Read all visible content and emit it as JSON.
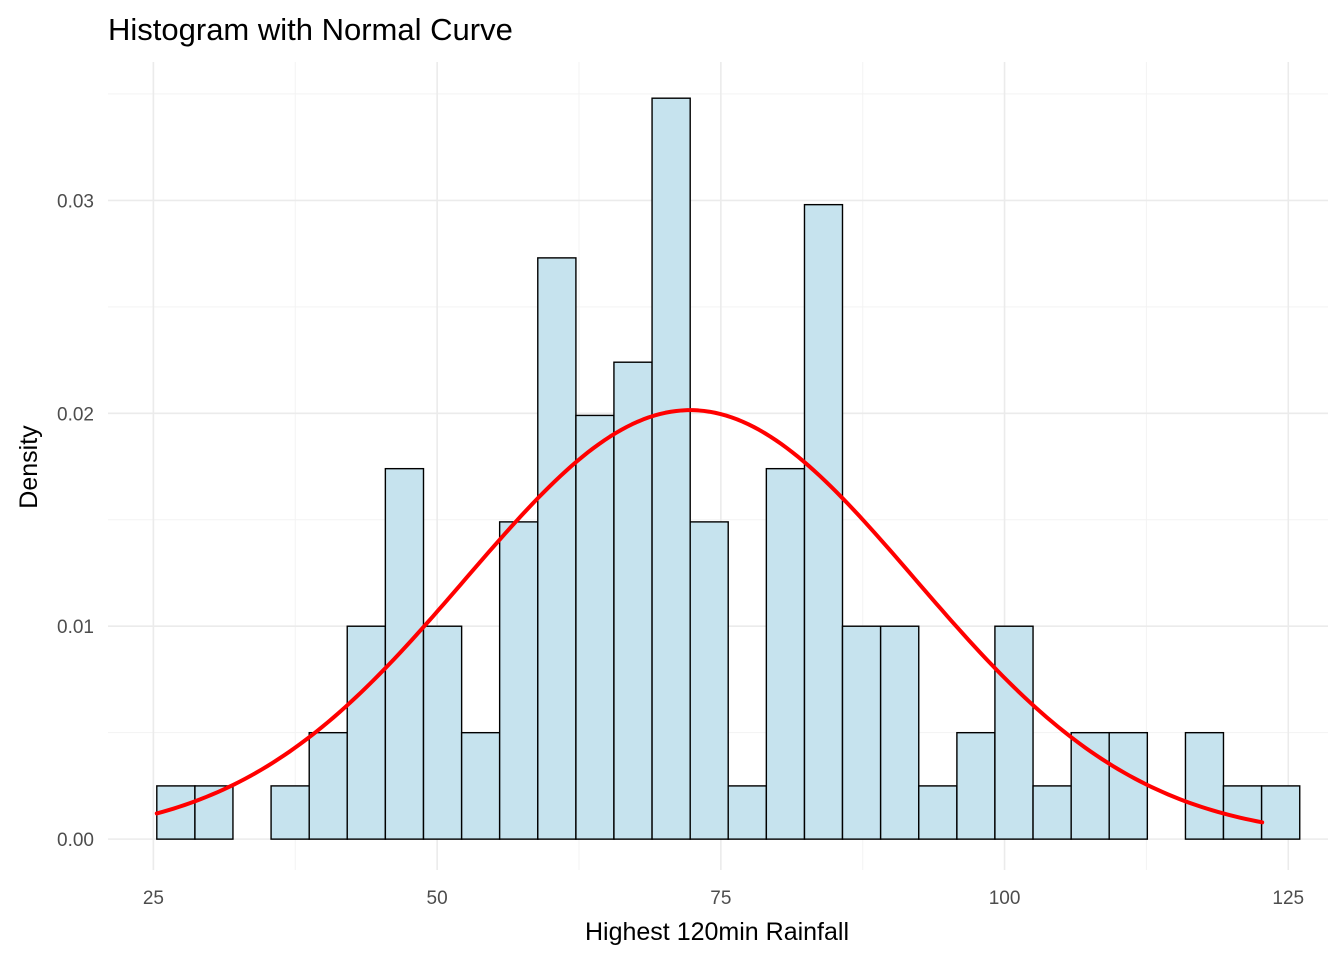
{
  "chart_data": {
    "type": "bar",
    "subtype": "histogram",
    "title": "Histogram with Normal Curve",
    "xlabel": "Highest 120min Rainfall",
    "ylabel": "Density",
    "xlim": [
      21,
      128.5
    ],
    "ylim": [
      -0.00145,
      0.0365
    ],
    "x_ticks": [
      25,
      50,
      75,
      100,
      125
    ],
    "x_tick_labels": [
      "25",
      "50",
      "75",
      "100",
      "125"
    ],
    "y_ticks": [
      0.0,
      0.01,
      0.02,
      0.03
    ],
    "y_tick_labels": [
      "0.00",
      "0.01",
      "0.02",
      "0.03"
    ],
    "grid": true,
    "bin_width": 3.357,
    "bins": [
      {
        "x0": 25.3,
        "x1": 28.66,
        "density": 0.0025
      },
      {
        "x0": 28.66,
        "x1": 32.01,
        "density": 0.0025
      },
      {
        "x0": 32.01,
        "x1": 35.37,
        "density": 0.0
      },
      {
        "x0": 35.37,
        "x1": 38.73,
        "density": 0.0025
      },
      {
        "x0": 38.73,
        "x1": 42.08,
        "density": 0.005
      },
      {
        "x0": 42.08,
        "x1": 45.44,
        "density": 0.01
      },
      {
        "x0": 45.44,
        "x1": 48.8,
        "density": 0.0174
      },
      {
        "x0": 48.8,
        "x1": 52.16,
        "density": 0.01
      },
      {
        "x0": 52.16,
        "x1": 55.51,
        "density": 0.005
      },
      {
        "x0": 55.51,
        "x1": 58.87,
        "density": 0.0149
      },
      {
        "x0": 58.87,
        "x1": 62.23,
        "density": 0.0273
      },
      {
        "x0": 62.23,
        "x1": 65.58,
        "density": 0.0199
      },
      {
        "x0": 65.58,
        "x1": 68.94,
        "density": 0.0224
      },
      {
        "x0": 68.94,
        "x1": 72.3,
        "density": 0.0348
      },
      {
        "x0": 72.3,
        "x1": 75.65,
        "density": 0.0149
      },
      {
        "x0": 75.65,
        "x1": 79.01,
        "density": 0.0025
      },
      {
        "x0": 79.01,
        "x1": 82.37,
        "density": 0.0174
      },
      {
        "x0": 82.37,
        "x1": 85.72,
        "density": 0.0298
      },
      {
        "x0": 85.72,
        "x1": 89.08,
        "density": 0.01
      },
      {
        "x0": 89.08,
        "x1": 92.44,
        "density": 0.01
      },
      {
        "x0": 92.44,
        "x1": 95.8,
        "density": 0.0025
      },
      {
        "x0": 95.8,
        "x1": 99.15,
        "density": 0.005
      },
      {
        "x0": 99.15,
        "x1": 102.51,
        "density": 0.01
      },
      {
        "x0": 102.51,
        "x1": 105.87,
        "density": 0.0025
      },
      {
        "x0": 105.87,
        "x1": 109.22,
        "density": 0.005
      },
      {
        "x0": 109.22,
        "x1": 112.58,
        "density": 0.005
      },
      {
        "x0": 112.58,
        "x1": 115.94,
        "density": 0.0
      },
      {
        "x0": 115.94,
        "x1": 119.29,
        "density": 0.005
      },
      {
        "x0": 119.29,
        "x1": 122.65,
        "density": 0.0025
      },
      {
        "x0": 122.65,
        "x1": 126.01,
        "density": 0.0025
      }
    ],
    "normal_curve": {
      "mean": 72.3,
      "sd": 19.8,
      "x_range": [
        25.3,
        122.7
      ]
    },
    "colors": {
      "bar_fill": "#c6e3ee",
      "bar_outline": "#000000",
      "curve": "#ff0000",
      "grid": "#ebebeb",
      "tick_text": "#4d4d4d"
    }
  }
}
